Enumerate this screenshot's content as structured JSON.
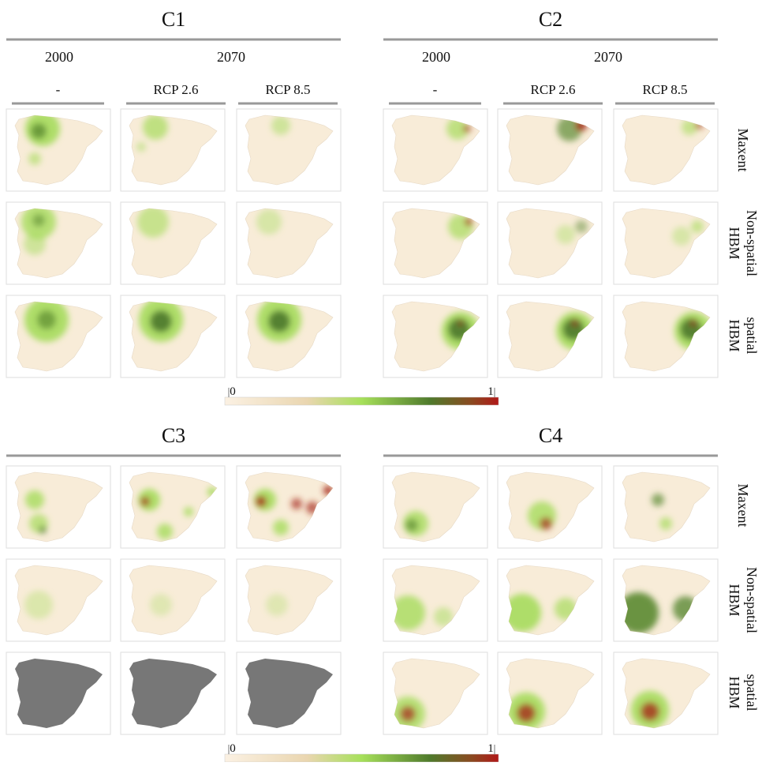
{
  "panels": [
    {
      "title": "C1",
      "years": [
        "2000",
        "2070"
      ],
      "scenarios": [
        "-",
        "RCP 2.6",
        "RCP 8.5"
      ]
    },
    {
      "title": "C2",
      "years": [
        "2000",
        "2070"
      ],
      "scenarios": [
        "-",
        "RCP 2.6",
        "RCP 8.5"
      ]
    },
    {
      "title": "C3"
    },
    {
      "title": "C4"
    }
  ],
  "row_labels": [
    [
      "Maxent"
    ],
    [
      "Non-spatial",
      "HBM"
    ],
    [
      "spatial",
      "HBM"
    ]
  ],
  "colorbar": {
    "min": 0,
    "max": 1
  }
}
